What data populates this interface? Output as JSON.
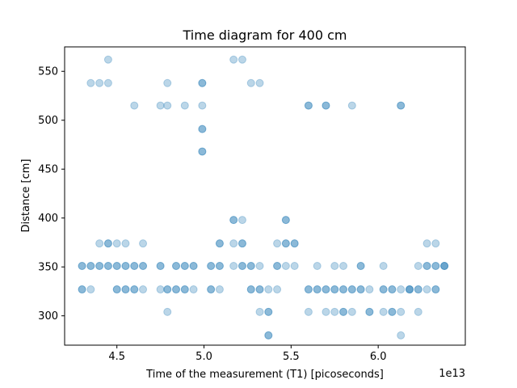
{
  "chart_data": {
    "type": "scatter",
    "title": "Time diagram for 400 cm",
    "xlabel": "Time of the measurement (T1) [picoseconds]",
    "ylabel": "Distance [cm]",
    "x_offset_label": "1e13",
    "xlim": [
      4.2,
      6.5
    ],
    "ylim": [
      270,
      575
    ],
    "xticks": [
      4.5,
      5.0,
      5.5,
      6.0
    ],
    "xtick_labels": [
      "4.5",
      "5.0",
      "5.5",
      "6.0"
    ],
    "yticks": [
      300,
      350,
      400,
      450,
      500,
      550
    ],
    "ytick_labels": [
      "300",
      "350",
      "400",
      "450",
      "500",
      "550"
    ],
    "grid": false,
    "marker_color": "#1f77b4",
    "marker_alpha": 0.3,
    "points": [
      {
        "x": 4.3,
        "y": 351
      },
      {
        "x": 4.3,
        "y": 351
      },
      {
        "x": 4.3,
        "y": 327
      },
      {
        "x": 4.3,
        "y": 327
      },
      {
        "x": 4.35,
        "y": 351
      },
      {
        "x": 4.35,
        "y": 351
      },
      {
        "x": 4.35,
        "y": 327
      },
      {
        "x": 4.35,
        "y": 538
      },
      {
        "x": 4.4,
        "y": 351
      },
      {
        "x": 4.4,
        "y": 351
      },
      {
        "x": 4.4,
        "y": 374
      },
      {
        "x": 4.4,
        "y": 538
      },
      {
        "x": 4.45,
        "y": 351
      },
      {
        "x": 4.45,
        "y": 351
      },
      {
        "x": 4.45,
        "y": 374
      },
      {
        "x": 4.45,
        "y": 374
      },
      {
        "x": 4.45,
        "y": 538
      },
      {
        "x": 4.45,
        "y": 562
      },
      {
        "x": 4.5,
        "y": 351
      },
      {
        "x": 4.5,
        "y": 351
      },
      {
        "x": 4.5,
        "y": 327
      },
      {
        "x": 4.5,
        "y": 327
      },
      {
        "x": 4.5,
        "y": 374
      },
      {
        "x": 4.55,
        "y": 351
      },
      {
        "x": 4.55,
        "y": 351
      },
      {
        "x": 4.55,
        "y": 327
      },
      {
        "x": 4.55,
        "y": 327
      },
      {
        "x": 4.55,
        "y": 374
      },
      {
        "x": 4.6,
        "y": 351
      },
      {
        "x": 4.6,
        "y": 351
      },
      {
        "x": 4.6,
        "y": 327
      },
      {
        "x": 4.6,
        "y": 327
      },
      {
        "x": 4.6,
        "y": 515
      },
      {
        "x": 4.65,
        "y": 351
      },
      {
        "x": 4.65,
        "y": 351
      },
      {
        "x": 4.65,
        "y": 327
      },
      {
        "x": 4.65,
        "y": 374
      },
      {
        "x": 4.75,
        "y": 351
      },
      {
        "x": 4.75,
        "y": 351
      },
      {
        "x": 4.75,
        "y": 327
      },
      {
        "x": 4.75,
        "y": 515
      },
      {
        "x": 4.79,
        "y": 327
      },
      {
        "x": 4.79,
        "y": 327
      },
      {
        "x": 4.79,
        "y": 304
      },
      {
        "x": 4.79,
        "y": 515
      },
      {
        "x": 4.79,
        "y": 538
      },
      {
        "x": 4.84,
        "y": 351
      },
      {
        "x": 4.84,
        "y": 351
      },
      {
        "x": 4.84,
        "y": 327
      },
      {
        "x": 4.84,
        "y": 327
      },
      {
        "x": 4.89,
        "y": 351
      },
      {
        "x": 4.89,
        "y": 351
      },
      {
        "x": 4.89,
        "y": 327
      },
      {
        "x": 4.89,
        "y": 327
      },
      {
        "x": 4.89,
        "y": 515
      },
      {
        "x": 4.94,
        "y": 351
      },
      {
        "x": 4.94,
        "y": 351
      },
      {
        "x": 4.94,
        "y": 327
      },
      {
        "x": 4.99,
        "y": 538
      },
      {
        "x": 4.99,
        "y": 538
      },
      {
        "x": 4.99,
        "y": 515
      },
      {
        "x": 4.99,
        "y": 491
      },
      {
        "x": 4.99,
        "y": 491
      },
      {
        "x": 4.99,
        "y": 468
      },
      {
        "x": 4.99,
        "y": 468
      },
      {
        "x": 5.04,
        "y": 351
      },
      {
        "x": 5.04,
        "y": 351
      },
      {
        "x": 5.04,
        "y": 327
      },
      {
        "x": 5.04,
        "y": 327
      },
      {
        "x": 5.09,
        "y": 351
      },
      {
        "x": 5.09,
        "y": 351
      },
      {
        "x": 5.09,
        "y": 374
      },
      {
        "x": 5.09,
        "y": 374
      },
      {
        "x": 5.09,
        "y": 327
      },
      {
        "x": 5.17,
        "y": 398
      },
      {
        "x": 5.17,
        "y": 398
      },
      {
        "x": 5.17,
        "y": 374
      },
      {
        "x": 5.17,
        "y": 351
      },
      {
        "x": 5.17,
        "y": 562
      },
      {
        "x": 5.22,
        "y": 398
      },
      {
        "x": 5.22,
        "y": 374
      },
      {
        "x": 5.22,
        "y": 374
      },
      {
        "x": 5.22,
        "y": 351
      },
      {
        "x": 5.22,
        "y": 351
      },
      {
        "x": 5.22,
        "y": 562
      },
      {
        "x": 5.27,
        "y": 351
      },
      {
        "x": 5.27,
        "y": 351
      },
      {
        "x": 5.27,
        "y": 327
      },
      {
        "x": 5.27,
        "y": 327
      },
      {
        "x": 5.27,
        "y": 538
      },
      {
        "x": 5.32,
        "y": 351
      },
      {
        "x": 5.32,
        "y": 327
      },
      {
        "x": 5.32,
        "y": 327
      },
      {
        "x": 5.32,
        "y": 304
      },
      {
        "x": 5.32,
        "y": 538
      },
      {
        "x": 5.37,
        "y": 304
      },
      {
        "x": 5.37,
        "y": 304
      },
      {
        "x": 5.37,
        "y": 327
      },
      {
        "x": 5.37,
        "y": 280
      },
      {
        "x": 5.37,
        "y": 280
      },
      {
        "x": 5.42,
        "y": 351
      },
      {
        "x": 5.42,
        "y": 351
      },
      {
        "x": 5.42,
        "y": 374
      },
      {
        "x": 5.42,
        "y": 327
      },
      {
        "x": 5.47,
        "y": 398
      },
      {
        "x": 5.47,
        "y": 398
      },
      {
        "x": 5.47,
        "y": 374
      },
      {
        "x": 5.47,
        "y": 374
      },
      {
        "x": 5.47,
        "y": 351
      },
      {
        "x": 5.52,
        "y": 374
      },
      {
        "x": 5.52,
        "y": 374
      },
      {
        "x": 5.52,
        "y": 351
      },
      {
        "x": 5.6,
        "y": 327
      },
      {
        "x": 5.6,
        "y": 327
      },
      {
        "x": 5.6,
        "y": 304
      },
      {
        "x": 5.6,
        "y": 515
      },
      {
        "x": 5.6,
        "y": 515
      },
      {
        "x": 5.65,
        "y": 327
      },
      {
        "x": 5.65,
        "y": 327
      },
      {
        "x": 5.65,
        "y": 351
      },
      {
        "x": 5.7,
        "y": 327
      },
      {
        "x": 5.7,
        "y": 327
      },
      {
        "x": 5.7,
        "y": 304
      },
      {
        "x": 5.7,
        "y": 515
      },
      {
        "x": 5.7,
        "y": 515
      },
      {
        "x": 5.75,
        "y": 327
      },
      {
        "x": 5.75,
        "y": 327
      },
      {
        "x": 5.75,
        "y": 304
      },
      {
        "x": 5.75,
        "y": 351
      },
      {
        "x": 5.8,
        "y": 327
      },
      {
        "x": 5.8,
        "y": 327
      },
      {
        "x": 5.8,
        "y": 304
      },
      {
        "x": 5.8,
        "y": 304
      },
      {
        "x": 5.8,
        "y": 351
      },
      {
        "x": 5.85,
        "y": 327
      },
      {
        "x": 5.85,
        "y": 327
      },
      {
        "x": 5.85,
        "y": 304
      },
      {
        "x": 5.85,
        "y": 515
      },
      {
        "x": 5.9,
        "y": 327
      },
      {
        "x": 5.9,
        "y": 327
      },
      {
        "x": 5.9,
        "y": 351
      },
      {
        "x": 5.9,
        "y": 351
      },
      {
        "x": 5.95,
        "y": 327
      },
      {
        "x": 5.95,
        "y": 304
      },
      {
        "x": 5.95,
        "y": 304
      },
      {
        "x": 6.03,
        "y": 351
      },
      {
        "x": 6.03,
        "y": 327
      },
      {
        "x": 6.03,
        "y": 327
      },
      {
        "x": 6.03,
        "y": 304
      },
      {
        "x": 6.08,
        "y": 327
      },
      {
        "x": 6.08,
        "y": 327
      },
      {
        "x": 6.08,
        "y": 304
      },
      {
        "x": 6.08,
        "y": 304
      },
      {
        "x": 6.13,
        "y": 327
      },
      {
        "x": 6.13,
        "y": 304
      },
      {
        "x": 6.13,
        "y": 280
      },
      {
        "x": 6.13,
        "y": 515
      },
      {
        "x": 6.13,
        "y": 515
      },
      {
        "x": 6.18,
        "y": 327
      },
      {
        "x": 6.18,
        "y": 327
      },
      {
        "x": 6.18,
        "y": 327
      },
      {
        "x": 6.23,
        "y": 351
      },
      {
        "x": 6.23,
        "y": 327
      },
      {
        "x": 6.23,
        "y": 327
      },
      {
        "x": 6.23,
        "y": 304
      },
      {
        "x": 6.28,
        "y": 351
      },
      {
        "x": 6.28,
        "y": 351
      },
      {
        "x": 6.28,
        "y": 327
      },
      {
        "x": 6.28,
        "y": 374
      },
      {
        "x": 6.33,
        "y": 351
      },
      {
        "x": 6.33,
        "y": 351
      },
      {
        "x": 6.33,
        "y": 327
      },
      {
        "x": 6.33,
        "y": 327
      },
      {
        "x": 6.33,
        "y": 374
      },
      {
        "x": 6.38,
        "y": 351
      },
      {
        "x": 6.38,
        "y": 351
      },
      {
        "x": 6.38,
        "y": 351
      }
    ]
  }
}
